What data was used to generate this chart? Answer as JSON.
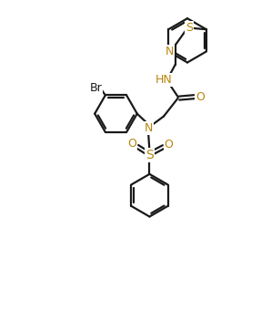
{
  "line_color": "#1a1a1a",
  "label_color_dark": "#1a1a1a",
  "label_color_n": "#b8860b",
  "label_color_s": "#b8860b",
  "label_color_o": "#b8860b",
  "bg_color": "#ffffff",
  "line_width": 1.6,
  "figsize": [
    2.87,
    3.53
  ],
  "dpi": 100,
  "xlim": [
    0,
    10
  ],
  "ylim": [
    0,
    12.3
  ]
}
